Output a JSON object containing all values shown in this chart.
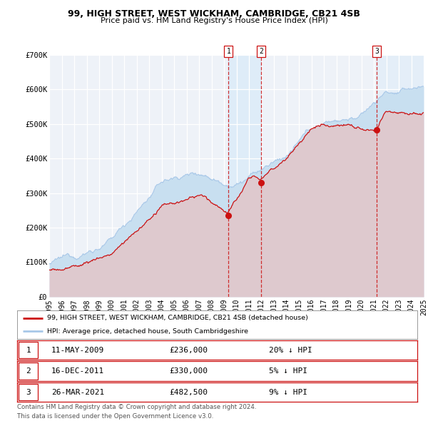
{
  "title": "99, HIGH STREET, WEST WICKHAM, CAMBRIDGE, CB21 4SB",
  "subtitle": "Price paid vs. HM Land Registry's House Price Index (HPI)",
  "xlim": [
    1995,
    2025
  ],
  "ylim": [
    0,
    700000
  ],
  "yticks": [
    0,
    100000,
    200000,
    300000,
    400000,
    500000,
    600000,
    700000
  ],
  "ytick_labels": [
    "£0",
    "£100K",
    "£200K",
    "£300K",
    "£400K",
    "£500K",
    "£600K",
    "£700K"
  ],
  "xtick_years": [
    1995,
    1996,
    1997,
    1998,
    1999,
    2000,
    2001,
    2002,
    2003,
    2004,
    2005,
    2006,
    2007,
    2008,
    2009,
    2010,
    2011,
    2012,
    2013,
    2014,
    2015,
    2016,
    2017,
    2018,
    2019,
    2020,
    2021,
    2022,
    2023,
    2024,
    2025
  ],
  "hpi_color": "#a8c8e8",
  "hpi_fill_color": "#c8dff0",
  "price_color": "#cc1111",
  "price_fill_color": "#e8c0c0",
  "plot_bg_color": "#eef2f8",
  "grid_color": "#ffffff",
  "sale_points": [
    {
      "num": 1,
      "date": "11-MAY-2009",
      "x": 2009.36,
      "price": 236000
    },
    {
      "num": 2,
      "date": "16-DEC-2011",
      "x": 2011.96,
      "price": 330000
    },
    {
      "num": 3,
      "date": "26-MAR-2021",
      "x": 2021.23,
      "price": 482500
    }
  ],
  "legend_label_price": "99, HIGH STREET, WEST WICKHAM, CAMBRIDGE, CB21 4SB (detached house)",
  "legend_label_hpi": "HPI: Average price, detached house, South Cambridgeshire",
  "table_rows": [
    {
      "num": "1",
      "date": "11-MAY-2009",
      "price": "£236,000",
      "pct": "20% ↓ HPI"
    },
    {
      "num": "2",
      "date": "16-DEC-2011",
      "price": "£330,000",
      "pct": "5% ↓ HPI"
    },
    {
      "num": "3",
      "date": "26-MAR-2021",
      "price": "£482,500",
      "pct": "9% ↓ HPI"
    }
  ],
  "footer1": "Contains HM Land Registry data © Crown copyright and database right 2024.",
  "footer2": "This data is licensed under the Open Government Licence v3.0."
}
